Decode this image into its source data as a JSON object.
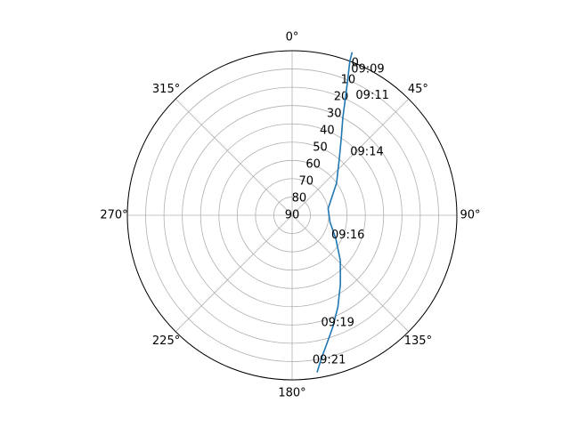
{
  "chart_data": {
    "type": "line",
    "projection": "polar",
    "theta_zero_location": "top",
    "theta_direction": "clockwise",
    "theta_ticks": [
      "0°",
      "45°",
      "90°",
      "135°",
      "180°",
      "225°",
      "270°",
      "315°"
    ],
    "r_ticks": [
      "0",
      "10",
      "20",
      "30",
      "40",
      "50",
      "60",
      "70",
      "80",
      "90"
    ],
    "r_tick_angle_deg": 22.5,
    "r_axis": "elevation, inverted (90 at center, 0 at edge)",
    "grid": true,
    "color": "#1f77b4",
    "series": [
      {
        "values": [
          {
            "az": 20.2,
            "el": -5
          },
          {
            "az": 20.5,
            "el": 0
          },
          {
            "az": 22.3,
            "el": 10
          },
          {
            "az": 24.5,
            "el": 20
          },
          {
            "az": 27.5,
            "el": 30
          },
          {
            "az": 32.5,
            "el": 40
          },
          {
            "az": 40.0,
            "el": 50
          },
          {
            "az": 54.0,
            "el": 60
          },
          {
            "az": 79.5,
            "el": 70
          },
          {
            "az": 100.0,
            "el": 69
          },
          {
            "az": 118.0,
            "el": 63
          },
          {
            "az": 133.0,
            "el": 54
          },
          {
            "az": 145.0,
            "el": 44
          },
          {
            "az": 153.5,
            "el": 34
          },
          {
            "az": 160.0,
            "el": 25
          },
          {
            "az": 165.0,
            "el": 17
          },
          {
            "az": 168.5,
            "el": 10
          },
          {
            "az": 171.0,
            "el": 3
          }
        ]
      }
    ],
    "annotations": [
      {
        "text": "09:09",
        "az": 22.0,
        "el": 4
      },
      {
        "text": "09:11",
        "az": 28.0,
        "el": 16
      },
      {
        "text": "09:14",
        "az": 42.5,
        "el": 43
      },
      {
        "text": "09:16",
        "az": 117.0,
        "el": 66
      },
      {
        "text": "09:19",
        "az": 165.0,
        "el": 29
      },
      {
        "text": "09:21",
        "az": 172.0,
        "el": 10
      }
    ]
  }
}
